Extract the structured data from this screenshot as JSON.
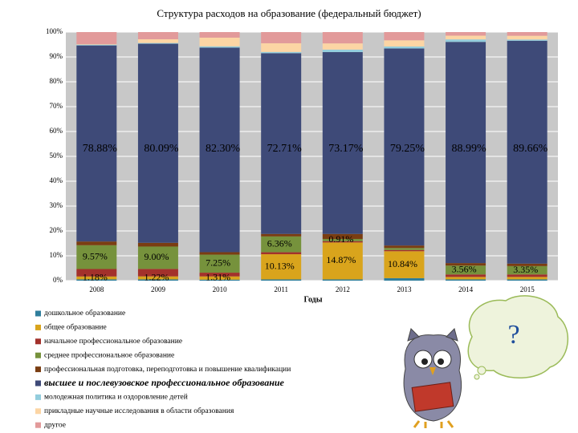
{
  "chart_data": {
    "type": "stacked_bar",
    "title": "Структура расходов на образование (федеральный бюджет)",
    "x_label": "Годы",
    "categories": [
      "2008",
      "2009",
      "2010",
      "2011",
      "2012",
      "2013",
      "2014",
      "2015"
    ],
    "ylim": [
      0,
      100
    ],
    "yticks": [
      {
        "value": 0,
        "label": "0%"
      },
      {
        "value": 10,
        "label": "10%"
      },
      {
        "value": 20,
        "label": "20%"
      },
      {
        "value": 30,
        "label": "30%"
      },
      {
        "value": 40,
        "label": "40%"
      },
      {
        "value": 50,
        "label": "50%"
      },
      {
        "value": 60,
        "label": "60%"
      },
      {
        "value": 70,
        "label": "70%"
      },
      {
        "value": 80,
        "label": "80%"
      },
      {
        "value": 90,
        "label": "90%"
      },
      {
        "value": 100,
        "label": "100%"
      }
    ],
    "grid": true,
    "legend": "bottom-left",
    "series": [
      {
        "name": "дошкольное образование",
        "color": "#2f7e9c",
        "values": [
          0.5,
          0.5,
          0.4,
          0.5,
          0.5,
          1.0,
          0.5,
          0.5
        ]
      },
      {
        "name": "общее образование",
        "color": "#d9a41c",
        "values": [
          1.18,
          1.22,
          1.31,
          10.13,
          14.87,
          10.84,
          1.0,
          1.0
        ],
        "value_labels": [
          "1.18%",
          "1.22%",
          "1.31%",
          "10.13%",
          "14.87%",
          "10.84%",
          null,
          null
        ]
      },
      {
        "name": "начальное профессиональное образование",
        "color": "#a3312b",
        "values": [
          3.0,
          3.0,
          1.5,
          0.8,
          0.5,
          0.5,
          1.0,
          1.0
        ]
      },
      {
        "name": "среднее профессиональное образование",
        "color": "#76923c",
        "values": [
          9.57,
          9.0,
          7.25,
          6.36,
          0.91,
          0.8,
          3.56,
          3.35
        ],
        "value_labels": [
          "9.57%",
          "9.00%",
          "7.25%",
          "6.36%",
          "0.91%",
          null,
          "3.56%",
          "3.35%"
        ]
      },
      {
        "name": "профессиональная подготовка, переподготовка и повышение квалификации",
        "color": "#7a3d12",
        "values": [
          1.5,
          1.5,
          1.0,
          1.0,
          2.0,
          1.0,
          1.0,
          1.0
        ]
      },
      {
        "name": "высшее и послевузовское профессиональное образование",
        "color": "#3e4a78",
        "values": [
          78.88,
          80.09,
          82.3,
          72.71,
          73.17,
          79.25,
          88.99,
          89.66
        ],
        "value_labels": [
          "78.88%",
          "80.09%",
          "82.30%",
          "72.71%",
          "73.17%",
          "79.25%",
          "88.99%",
          "89.66%"
        ]
      },
      {
        "name": "молодежная политика и оздоровление детей",
        "color": "#93cddd",
        "values": [
          0.3,
          0.3,
          0.5,
          0.5,
          1.0,
          0.8,
          1.0,
          0.5
        ]
      },
      {
        "name": "прикладные научные исследования в области образования",
        "color": "#fcd5a4",
        "values": [
          0.2,
          1.5,
          3.5,
          3.5,
          2.5,
          2.5,
          1.5,
          1.5
        ]
      },
      {
        "name": "другое",
        "color": "#e29a9a",
        "values": [
          4.87,
          2.89,
          2.24,
          4.5,
          4.55,
          3.31,
          1.45,
          1.49
        ]
      }
    ],
    "annotation": "?"
  }
}
